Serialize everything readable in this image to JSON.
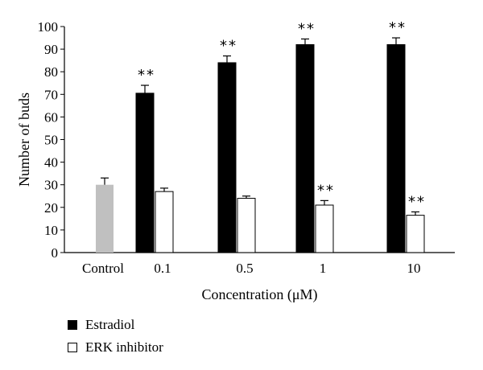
{
  "chart_data": {
    "type": "bar",
    "categories": [
      "Control",
      "0.1",
      "0.5",
      "1",
      "10"
    ],
    "xlabel": "Concentration (μM)",
    "ylabel": "Number of buds",
    "ylim": [
      0,
      100
    ],
    "yticks": [
      0,
      10,
      20,
      30,
      40,
      50,
      60,
      70,
      80,
      90,
      100
    ],
    "grid": false,
    "legend_position": "bottom-left",
    "series": [
      {
        "name": "Control",
        "color": "#c0c0c0",
        "values": [
          30,
          null,
          null,
          null,
          null
        ],
        "errors": [
          3,
          null,
          null,
          null,
          null
        ],
        "significance": [
          "",
          "",
          "",
          "",
          ""
        ]
      },
      {
        "name": "Estradiol",
        "color": "#000000",
        "values": [
          null,
          70.5,
          84,
          92,
          92
        ],
        "errors": [
          null,
          3.5,
          3,
          2.5,
          3
        ],
        "significance": [
          "",
          "**",
          "**",
          "**",
          "**"
        ]
      },
      {
        "name": "ERK inhibitor",
        "color": "#ffffff",
        "values": [
          null,
          27,
          24,
          21,
          16.5
        ],
        "errors": [
          null,
          1.5,
          1,
          2,
          1.5
        ],
        "significance": [
          "",
          "",
          "",
          "**",
          "**"
        ]
      }
    ]
  }
}
